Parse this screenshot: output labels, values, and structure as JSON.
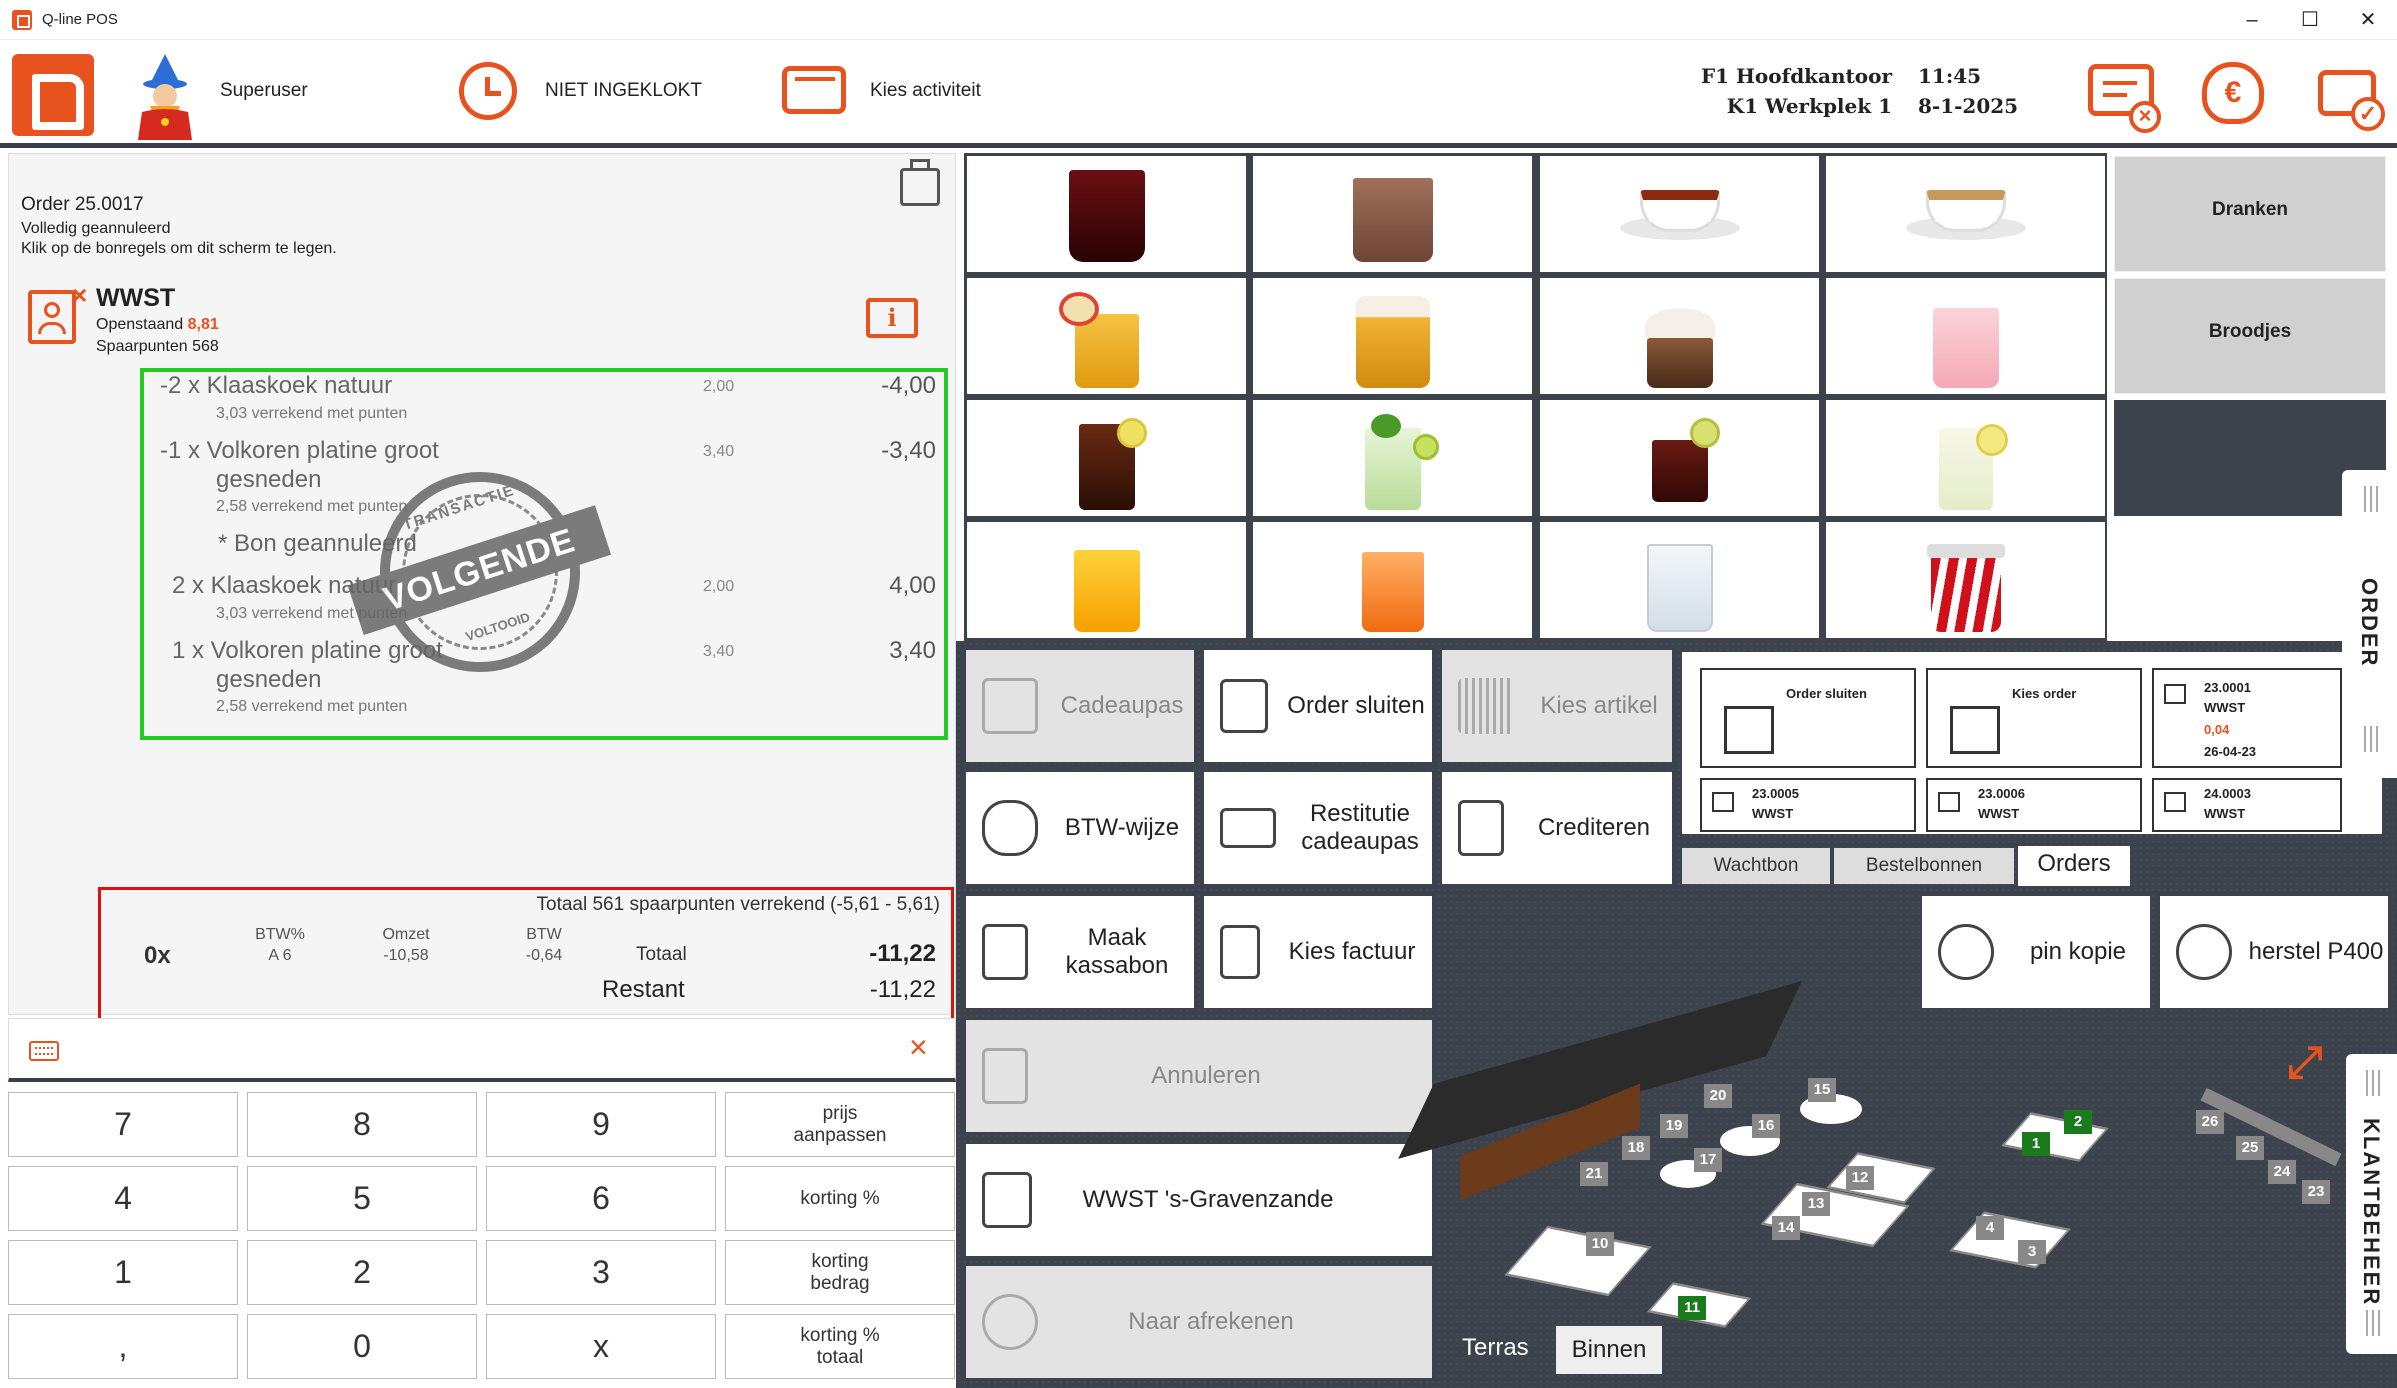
{
  "app": {
    "title": "Q-line POS",
    "brand_color": "#e8521f"
  },
  "header": {
    "user": "Superuser",
    "clock_status": "NIET INGEKLOKT",
    "activity": "Kies activiteit",
    "location_line1": "F1 Hoofdkantoor",
    "location_line2": "K1 Werkplek 1",
    "time": "11:45",
    "date": "8-1-2025"
  },
  "order": {
    "number": "Order 25.0017",
    "status": "Volledig geannuleerd",
    "hint": "Klik op de bonregels om dit scherm te legen.",
    "customer_name": "WWST",
    "outstanding_label": "Openstaand",
    "outstanding_value": "8,81",
    "points": "Spaarpunten 568",
    "lines": [
      {
        "main": "-2 x Klaaskoek natuur",
        "sub": "3,03 verrekend met punten",
        "unit": "2,00",
        "amount": "-4,00"
      },
      {
        "main": "-1 x Volkoren platine groot",
        "main2": "gesneden",
        "sub": "2,58 verrekend met punten",
        "unit": "3,40",
        "amount": "-3,40"
      },
      {
        "main": "* Bon geannuleerd"
      },
      {
        "main": "2 x Klaaskoek natuur",
        "sub": "3,03 verrekend met punten",
        "unit": "2,00",
        "amount": "4,00"
      },
      {
        "main": "1 x Volkoren platine groot",
        "main2": "gesneden",
        "sub": "2,58 verrekend met punten",
        "unit": "3,40",
        "amount": "3,40"
      }
    ],
    "stamp": {
      "top": "TRANSACTIE",
      "band": "VOLGENDE",
      "bottom": "VOLTOOID"
    },
    "totals": {
      "points_summary": "Totaal 561 spaarpunten verrekend (-5,61 - 5,61)",
      "count": "0x",
      "h_btwpct": "BTW%",
      "h_omzet": "Omzet",
      "h_btw": "BTW",
      "btwpct": "A 6",
      "omzet": "-10,58",
      "btw": "-0,64",
      "total_label": "Totaal",
      "total_value": "-11,22",
      "rest_label": "Restant",
      "rest_value": "-11,22"
    }
  },
  "keypad": {
    "rows": [
      [
        "7",
        "8",
        "9",
        "prijs aanpassen"
      ],
      [
        "4",
        "5",
        "6",
        "korting %"
      ],
      [
        "1",
        "2",
        "3",
        "korting bedrag"
      ],
      [
        ",",
        "0",
        "x",
        "korting % totaal"
      ]
    ]
  },
  "categories": [
    "Dranken",
    "Broodjes"
  ],
  "actions": {
    "cadeaupas": "Cadeaupas",
    "order_sluiten": "Order sluiten",
    "kies_artikel": "Kies artikel",
    "btw_wijze": "BTW-wijze",
    "restitutie": "Restitutie cadeaupas",
    "crediteren": "Crediteren",
    "maak_kassabon": "Maak kassabon",
    "kies_factuur": "Kies factuur",
    "annuleren": "Annuleren",
    "customer": "WWST 's-Gravenzande",
    "naar_afrekenen": "Naar afrekenen",
    "pin_kopie": "pin kopie",
    "herstel": "herstel P400"
  },
  "orders_panel": {
    "close_order": "Order sluiten",
    "choose_order": "Kies order",
    "cards": [
      {
        "no": "23.0001",
        "name": "WWST",
        "amount": "0,04",
        "date": "26-04-23"
      },
      {
        "no": "23.0005",
        "name": "WWST"
      },
      {
        "no": "23.0006",
        "name": "WWST"
      },
      {
        "no": "24.0003",
        "name": "WWST"
      }
    ],
    "tabs": [
      "Wachtbon",
      "Bestelbonnen",
      "Orders"
    ]
  },
  "side_tabs": {
    "order": "ORDER",
    "klantbeheer": "KLANTBEHEER"
  },
  "floor": {
    "tabs": [
      "Terras",
      "Binnen"
    ],
    "tables": [
      "20",
      "15",
      "19",
      "16",
      "18",
      "17",
      "21",
      "12",
      "13",
      "14",
      "10",
      "11",
      "1",
      "2",
      "4",
      "3",
      "26",
      "25",
      "24",
      "23"
    ]
  }
}
